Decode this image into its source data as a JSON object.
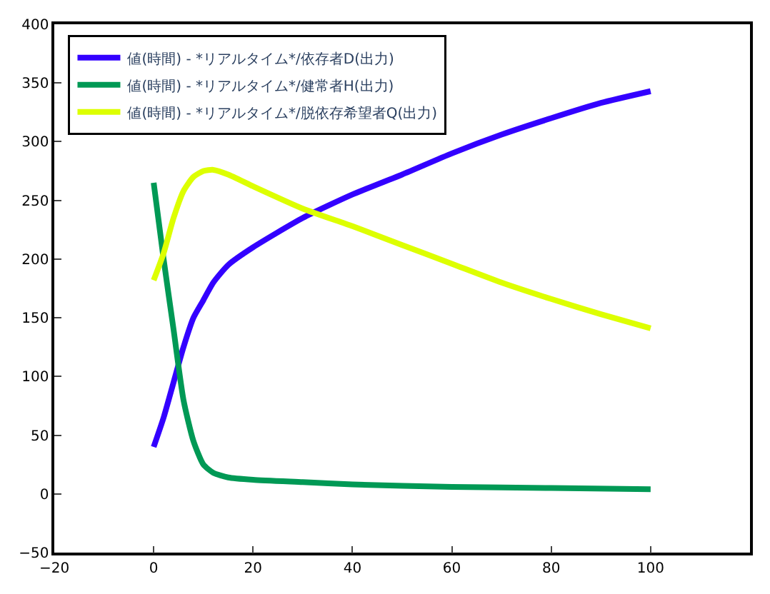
{
  "chart_data": {
    "type": "line",
    "xlim": [
      -20,
      120
    ],
    "ylim": [
      -50,
      400
    ],
    "xticks": [
      -20,
      0,
      20,
      40,
      60,
      80,
      100
    ],
    "yticks": [
      -50,
      0,
      50,
      100,
      150,
      200,
      250,
      300,
      350,
      400
    ],
    "legend": "top left",
    "marker": "none",
    "line_style": "solid",
    "series": [
      {
        "name": "値(時間) - *リアルタイム*/依存者D(出力)",
        "color": "#3300ff",
        "x": [
          0,
          2,
          4,
          6,
          8,
          10,
          12,
          15,
          20,
          30,
          40,
          50,
          60,
          70,
          80,
          90,
          100
        ],
        "values": [
          40,
          65,
          95,
          125,
          150,
          165,
          180,
          195,
          210,
          235,
          255,
          272,
          290,
          306,
          320,
          333,
          343
        ]
      },
      {
        "name": "値(時間) - *リアルタイム*/健常者H(出力)",
        "color": "#009955",
        "x": [
          0,
          2,
          4,
          6,
          8,
          10,
          12,
          15,
          20,
          30,
          40,
          60,
          80,
          100
        ],
        "values": [
          265,
          200,
          140,
          80,
          45,
          25,
          18,
          14,
          12,
          10,
          8,
          6,
          5,
          4
        ]
      },
      {
        "name": "値(時間) - *リアルタイム*/脱依存希望者Q(出力)",
        "color": "#ddff00",
        "x": [
          0,
          2,
          4,
          6,
          8,
          10,
          12,
          15,
          20,
          30,
          40,
          50,
          60,
          70,
          80,
          90,
          100
        ],
        "values": [
          182,
          205,
          235,
          258,
          270,
          275,
          276,
          272,
          262,
          243,
          228,
          212,
          196,
          180,
          166,
          153,
          141
        ]
      }
    ]
  }
}
